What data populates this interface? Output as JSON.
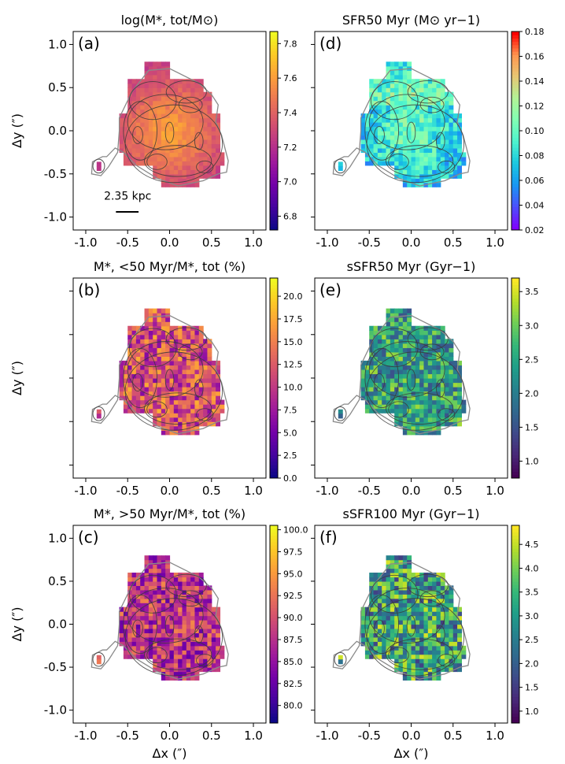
{
  "chart_data": [
    {
      "type": "heatmap",
      "panel": "(a)",
      "title": "log(M*, tot/M⊙)",
      "ylabel": "Δy (″)",
      "xlabel": "",
      "xlim": [
        -1.15,
        1.15
      ],
      "ylim": [
        -1.15,
        1.15
      ],
      "xticks": [
        "-1.0",
        "-0.5",
        "0.0",
        "0.5",
        "1.0"
      ],
      "yticks": [
        "1.0",
        "0.5",
        "0.0",
        "-0.5",
        "-1.0"
      ],
      "colormap": "plasma",
      "colorbar_range": [
        6.72,
        7.87
      ],
      "colorbar_ticks": [
        "7.8",
        "7.6",
        "7.4",
        "7.2",
        "7.0",
        "6.8"
      ],
      "typical_range": [
        7.15,
        7.65
      ],
      "scale_bar_label": "2.35 kpc"
    },
    {
      "type": "heatmap",
      "panel": "(b)",
      "title": "M*, <50 Myr/M*, tot (%)",
      "ylabel": "Δy (″)",
      "xlabel": "",
      "xlim": [
        -1.15,
        1.15
      ],
      "ylim": [
        -1.15,
        1.15
      ],
      "xticks": [
        "-1.0",
        "-0.5",
        "0.0",
        "0.5",
        "1.0"
      ],
      "yticks": [],
      "colormap": "plasma",
      "colorbar_range": [
        0.0,
        22.0
      ],
      "colorbar_ticks": [
        "20.0",
        "17.5",
        "15.0",
        "12.5",
        "10.0",
        "7.5",
        "5.0",
        "2.5",
        "0.0"
      ],
      "typical_range": [
        6.0,
        18.0
      ]
    },
    {
      "type": "heatmap",
      "panel": "(c)",
      "title": "M*, >50 Myr/M*, tot (%)",
      "ylabel": "Δy (″)",
      "xlabel": "Δx (″)",
      "xlim": [
        -1.15,
        1.15
      ],
      "ylim": [
        -1.15,
        1.15
      ],
      "xticks": [
        "-1.0",
        "-0.5",
        "0.0",
        "0.5",
        "1.0"
      ],
      "yticks": [
        "1.0",
        "0.5",
        "0.0",
        "-0.5",
        "-1.0"
      ],
      "colormap": "plasma",
      "colorbar_range": [
        78.0,
        100.5
      ],
      "colorbar_ticks": [
        "100.0",
        "97.5",
        "95.0",
        "92.5",
        "90.0",
        "87.5",
        "85.0",
        "82.5",
        "80.0"
      ],
      "typical_range": [
        82.0,
        94.0
      ]
    },
    {
      "type": "heatmap",
      "panel": "(d)",
      "title": "SFR50 Myr (M⊙ yr−1)",
      "ylabel": "",
      "xlabel": "",
      "xlim": [
        -1.15,
        1.15
      ],
      "ylim": [
        -1.15,
        1.15
      ],
      "xticks": [
        "-1.0",
        "-0.5",
        "0.0",
        "0.5",
        "1.0"
      ],
      "yticks": [],
      "colormap": "rainbow",
      "colorbar_range": [
        0.02,
        0.18
      ],
      "colorbar_ticks": [
        "0.18",
        "0.16",
        "0.14",
        "0.12",
        "0.10",
        "0.08",
        "0.06",
        "0.04",
        "0.02"
      ],
      "typical_range": [
        0.05,
        0.15
      ]
    },
    {
      "type": "heatmap",
      "panel": "(e)",
      "title": "sSFR50 Myr (Gyr−1)",
      "ylabel": "",
      "xlabel": "",
      "xlim": [
        -1.15,
        1.15
      ],
      "ylim": [
        -1.15,
        1.15
      ],
      "xticks": [
        "-1.0",
        "-0.5",
        "0.0",
        "0.5",
        "1.0"
      ],
      "yticks": [],
      "colormap": "viridis",
      "colorbar_range": [
        0.75,
        3.7
      ],
      "colorbar_ticks": [
        "3.5",
        "3.0",
        "2.5",
        "2.0",
        "1.5",
        "1.0"
      ],
      "typical_range": [
        1.5,
        3.3
      ]
    },
    {
      "type": "heatmap",
      "panel": "(f)",
      "title": "sSFR100 Myr (Gyr−1)",
      "ylabel": "",
      "xlabel": "Δx (″)",
      "xlim": [
        -1.15,
        1.15
      ],
      "ylim": [
        -1.15,
        1.15
      ],
      "xticks": [
        "-1.0",
        "-0.5",
        "0.0",
        "0.5",
        "1.0"
      ],
      "yticks": [],
      "colormap": "viridis",
      "colorbar_range": [
        0.75,
        4.9
      ],
      "colorbar_ticks": [
        "4.5",
        "4.0",
        "3.5",
        "3.0",
        "2.5",
        "2.0",
        "1.5",
        "1.0"
      ],
      "typical_range": [
        1.5,
        4.7
      ]
    }
  ]
}
